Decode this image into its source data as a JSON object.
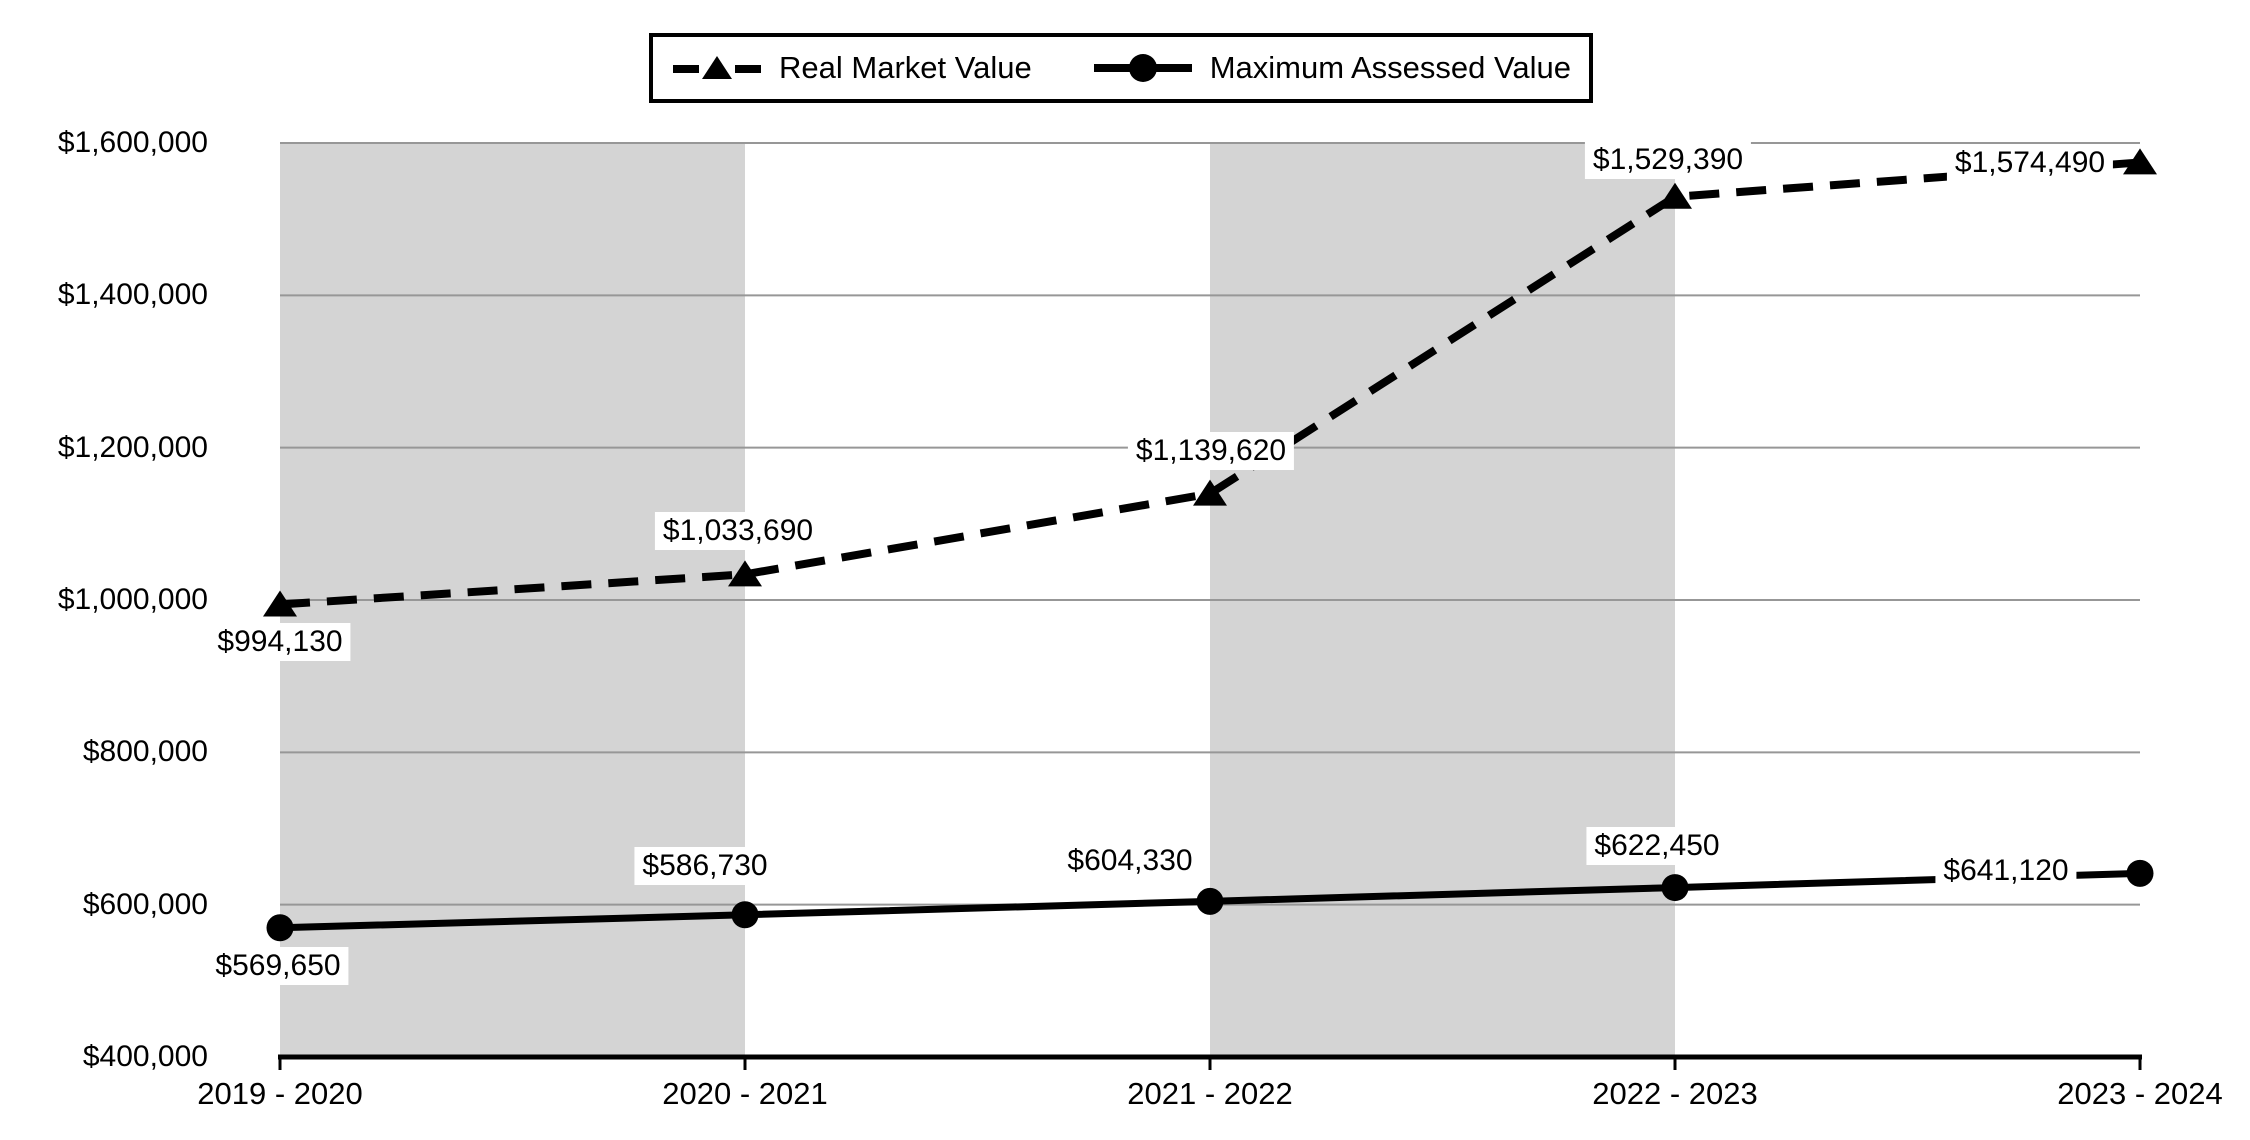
{
  "chart_data": {
    "type": "line",
    "title": "",
    "categories": [
      "2019 - 2020",
      "2020 - 2021",
      "2021 - 2022",
      "2022 - 2023",
      "2023 - 2024"
    ],
    "series": [
      {
        "name": "Real Market Value",
        "line_style": "dashed",
        "marker": "triangle",
        "values": [
          994130,
          1033690,
          1139620,
          1529390,
          1574490
        ],
        "labels": [
          "$994,130",
          "$1,033,690",
          "$1,139,620",
          "$1,529,390",
          "$1,574,490"
        ]
      },
      {
        "name": "Maximum Assessed Value",
        "line_style": "solid",
        "marker": "circle",
        "values": [
          569650,
          586730,
          604330,
          622450,
          641120
        ],
        "labels": [
          "$569,650",
          "$586,730",
          "$604,330",
          "$622,450",
          "$641,120"
        ]
      }
    ],
    "y_axis": {
      "min": 400000,
      "max": 1600000,
      "step": 200000,
      "tick_labels": [
        "$400,000",
        "$600,000",
        "$800,000",
        "$1,000,000",
        "$1,200,000",
        "$1,400,000",
        "$1,600,000"
      ]
    },
    "x_axis": {
      "tick_labels": [
        "2019 - 2020",
        "2020 - 2021",
        "2021 - 2022",
        "2022 - 2023",
        "2023 - 2024"
      ]
    },
    "legend_position": "top-center",
    "grid": true,
    "shaded_column_pairs": [
      [
        0,
        1
      ],
      [
        2,
        3
      ]
    ],
    "colors": {
      "series": "#000000",
      "band": "#d4d4d4",
      "gridline": "#979797",
      "axis": "#000000",
      "background": "#ffffff",
      "label_background": "#ffffff",
      "text": "#000000"
    }
  }
}
